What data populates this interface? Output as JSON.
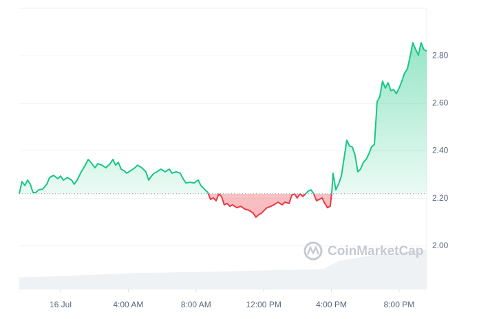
{
  "chart_data": {
    "type": "line",
    "baseline": 2.22,
    "up_color": "#16c784",
    "down_color": "#ea3943",
    "watermark": "CoinMarketCap",
    "xlim": [
      -2.44,
      21.63
    ],
    "ylim": [
      1.82,
      3.0
    ],
    "y2lim": [
      0,
      100
    ],
    "xticks": [
      {
        "value": 0,
        "label": "16 Jul"
      },
      {
        "value": 4,
        "label": "4:00 AM"
      },
      {
        "value": 8,
        "label": "8:00 AM"
      },
      {
        "value": 12,
        "label": "12:00 PM"
      },
      {
        "value": 16,
        "label": "4:00 PM"
      },
      {
        "value": 20,
        "label": "8:00 PM"
      }
    ],
    "yticks": [
      {
        "value": 2.0,
        "label": "2.00"
      },
      {
        "value": 2.2,
        "label": "2.20"
      },
      {
        "value": 2.4,
        "label": "2.40"
      },
      {
        "value": 2.6,
        "label": "2.60"
      },
      {
        "value": 2.8,
        "label": "2.80"
      }
    ],
    "grid": true,
    "x": [
      -2.44,
      -2.28,
      -2.11,
      -1.95,
      -1.79,
      -1.63,
      -1.46,
      -1.3,
      -1.06,
      -0.81,
      -0.65,
      -0.41,
      -0.16,
      0,
      0.16,
      0.41,
      0.65,
      0.81,
      0.98,
      1.22,
      1.46,
      1.63,
      1.79,
      2.03,
      2.2,
      2.44,
      2.68,
      2.93,
      3.09,
      3.25,
      3.41,
      3.58,
      3.74,
      3.9,
      4.15,
      4.39,
      4.55,
      4.8,
      5.04,
      5.2,
      5.37,
      5.53,
      5.69,
      5.93,
      6.18,
      6.42,
      6.59,
      6.83,
      7.07,
      7.24,
      7.4,
      7.64,
      7.89,
      8.13,
      8.29,
      8.54,
      8.7,
      8.86,
      9.02,
      9.19,
      9.35,
      9.51,
      9.67,
      9.84,
      10.0,
      10.16,
      10.41,
      10.65,
      10.89,
      11.14,
      11.38,
      11.54,
      11.71,
      11.87,
      12.03,
      12.2,
      12.44,
      12.6,
      12.85,
      13.09,
      13.25,
      13.5,
      13.66,
      13.82,
      13.98,
      14.15,
      14.31,
      14.47,
      14.63,
      14.8,
      14.96,
      15.12,
      15.28,
      15.45,
      15.61,
      15.77,
      15.93,
      16.02,
      16.1,
      16.26,
      16.42,
      16.59,
      16.75,
      16.91,
      17.07,
      17.24,
      17.4,
      17.56,
      17.72,
      17.89,
      18.05,
      18.21,
      18.37,
      18.54,
      18.62,
      18.7,
      18.86,
      19.02,
      19.19,
      19.35,
      19.51,
      19.67,
      19.84,
      20.0,
      20.16,
      20.33,
      20.49,
      20.65,
      20.81,
      20.98,
      21.14,
      21.3,
      21.46,
      21.63
    ],
    "values": [
      2.22,
      2.271,
      2.254,
      2.277,
      2.26,
      2.225,
      2.225,
      2.236,
      2.239,
      2.26,
      2.288,
      2.297,
      2.283,
      2.294,
      2.277,
      2.288,
      2.277,
      2.26,
      2.277,
      2.312,
      2.34,
      2.364,
      2.352,
      2.329,
      2.346,
      2.34,
      2.329,
      2.346,
      2.364,
      2.34,
      2.352,
      2.323,
      2.317,
      2.306,
      2.317,
      2.329,
      2.34,
      2.329,
      2.312,
      2.277,
      2.294,
      2.306,
      2.312,
      2.323,
      2.312,
      2.323,
      2.306,
      2.312,
      2.306,
      2.283,
      2.265,
      2.268,
      2.265,
      2.277,
      2.254,
      2.236,
      2.225,
      2.196,
      2.202,
      2.19,
      2.219,
      2.208,
      2.173,
      2.179,
      2.167,
      2.173,
      2.161,
      2.167,
      2.155,
      2.15,
      2.138,
      2.121,
      2.132,
      2.138,
      2.15,
      2.161,
      2.167,
      2.173,
      2.184,
      2.173,
      2.184,
      2.179,
      2.213,
      2.219,
      2.202,
      2.219,
      2.208,
      2.219,
      2.231,
      2.236,
      2.219,
      2.19,
      2.196,
      2.202,
      2.179,
      2.161,
      2.167,
      2.225,
      2.306,
      2.236,
      2.26,
      2.294,
      2.369,
      2.445,
      2.421,
      2.416,
      2.381,
      2.312,
      2.323,
      2.352,
      2.364,
      2.387,
      2.416,
      2.427,
      2.514,
      2.606,
      2.629,
      2.693,
      2.664,
      2.687,
      2.653,
      2.658,
      2.641,
      2.664,
      2.693,
      2.728,
      2.745,
      2.797,
      2.855,
      2.826,
      2.803,
      2.855,
      2.826,
      2.82
    ],
    "volume": {
      "color": "#eff2f5",
      "x": [
        -2.44,
        0,
        4,
        8,
        12,
        15.5,
        16.5,
        18.5,
        20,
        21.63
      ],
      "values": [
        4,
        4.5,
        5.5,
        6,
        6.5,
        7,
        10,
        12,
        13,
        14
      ]
    }
  }
}
